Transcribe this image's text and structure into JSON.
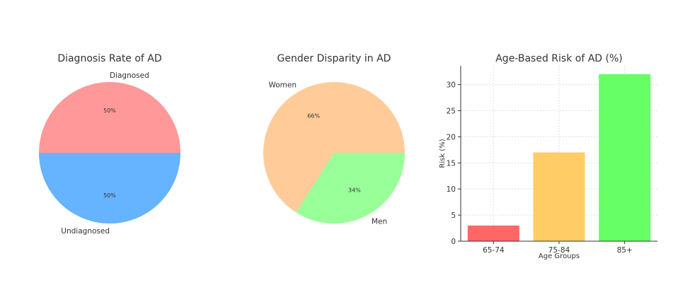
{
  "chart_data": [
    {
      "type": "pie",
      "title": "Diagnosis Rate of AD",
      "labels": [
        "Diagnosed",
        "Undiagnosed"
      ],
      "values": [
        50,
        50
      ],
      "pct_labels": [
        "50%",
        "50%"
      ],
      "colors": [
        "#ff9999",
        "#66b3ff"
      ],
      "startangle": 0
    },
    {
      "type": "pie",
      "title": "Gender Disparity in AD",
      "labels": [
        "Women",
        "Men"
      ],
      "values": [
        66,
        34
      ],
      "pct_labels": [
        "66%",
        "34%"
      ],
      "colors": [
        "#ffcc99",
        "#99ff99"
      ],
      "startangle": 0
    },
    {
      "type": "bar",
      "title": "Age-Based Risk of AD (%)",
      "categories": [
        "65-74",
        "75-84",
        "85+"
      ],
      "values": [
        3,
        17,
        32
      ],
      "colors": [
        "#ff6666",
        "#ffcc66",
        "#66ff66"
      ],
      "xlabel": "Age Groups",
      "ylabel": "Risk (%)",
      "ylim": [
        0,
        33.6
      ],
      "yticks": [
        "0",
        "5",
        "10",
        "15",
        "20",
        "25",
        "30"
      ],
      "grid": true
    }
  ]
}
